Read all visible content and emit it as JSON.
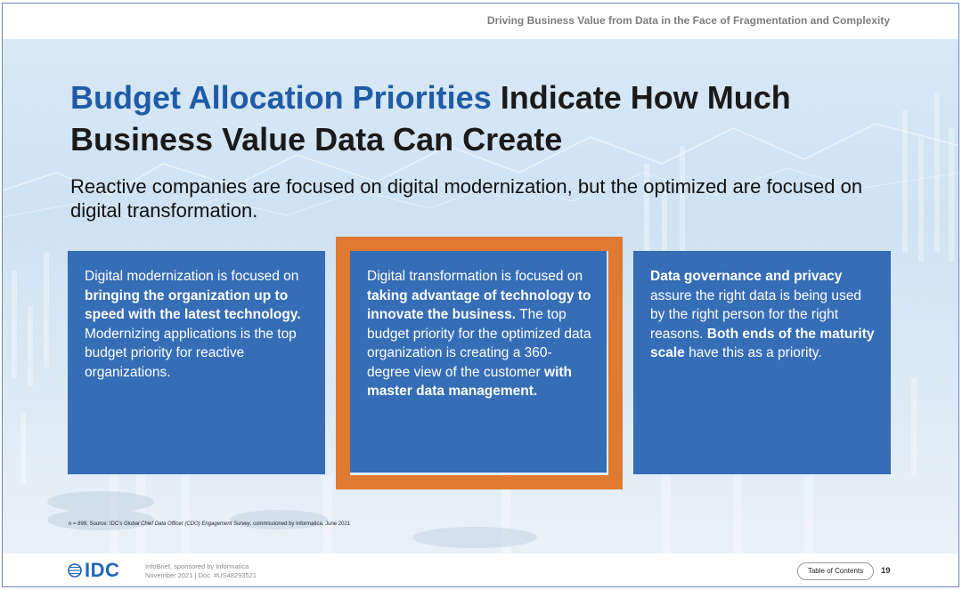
{
  "header": {
    "doc_title": "Driving Business Value from Data in the Face of Fragmentation and Complexity"
  },
  "slide": {
    "title_accent": "Budget Allocation Priorities",
    "title_rest": " Indicate How Much Business Value Data Can Create",
    "subtitle": "Reactive companies are focused on digital modernization, but the optimized are focused on digital transformation."
  },
  "boxes": [
    {
      "segments": [
        {
          "text": "Digital modernization is focused on ",
          "bold": false
        },
        {
          "text": "bringing the organization up to speed with the latest technology.",
          "bold": true
        },
        {
          "text": " Modernizing applications is the top budget priority for reactive organizations.",
          "bold": false
        }
      ]
    },
    {
      "segments": [
        {
          "text": "Digital transformation is focused on ",
          "bold": false
        },
        {
          "text": "taking advantage of technology to innovate the business.",
          "bold": true
        },
        {
          "text": " The top budget priority for the optimized data organization is creating a 360-degree view of the customer ",
          "bold": false
        },
        {
          "text": "with master data management.",
          "bold": true
        }
      ]
    },
    {
      "segments": [
        {
          "text": "Data governance and privacy",
          "bold": true
        },
        {
          "text": " assure the right data is being used by the right person for the right reasons. ",
          "bold": false
        },
        {
          "text": "Both ends of the maturity scale",
          "bold": true
        },
        {
          "text": " have this as a priority.",
          "bold": false
        }
      ]
    }
  ],
  "source": {
    "prefix": "n = 899, Source: IDC's ",
    "survey": "Global Chief Data Officer (CDO) Engagement Survey",
    "suffix": ", commissioned by Informatica, June 2021"
  },
  "footer": {
    "logo_text": "IDC",
    "line1": "InfoBrief, sponsored by Informatica",
    "line2": "November 2021 | Doc. #US48293521",
    "toc_label": "Table of Contents",
    "page_number": "19"
  },
  "colors": {
    "accent_blue": "#1f5ba6",
    "box_blue": "#356db6",
    "highlight_orange": "#df7a30",
    "logo_blue": "#2166b9"
  }
}
